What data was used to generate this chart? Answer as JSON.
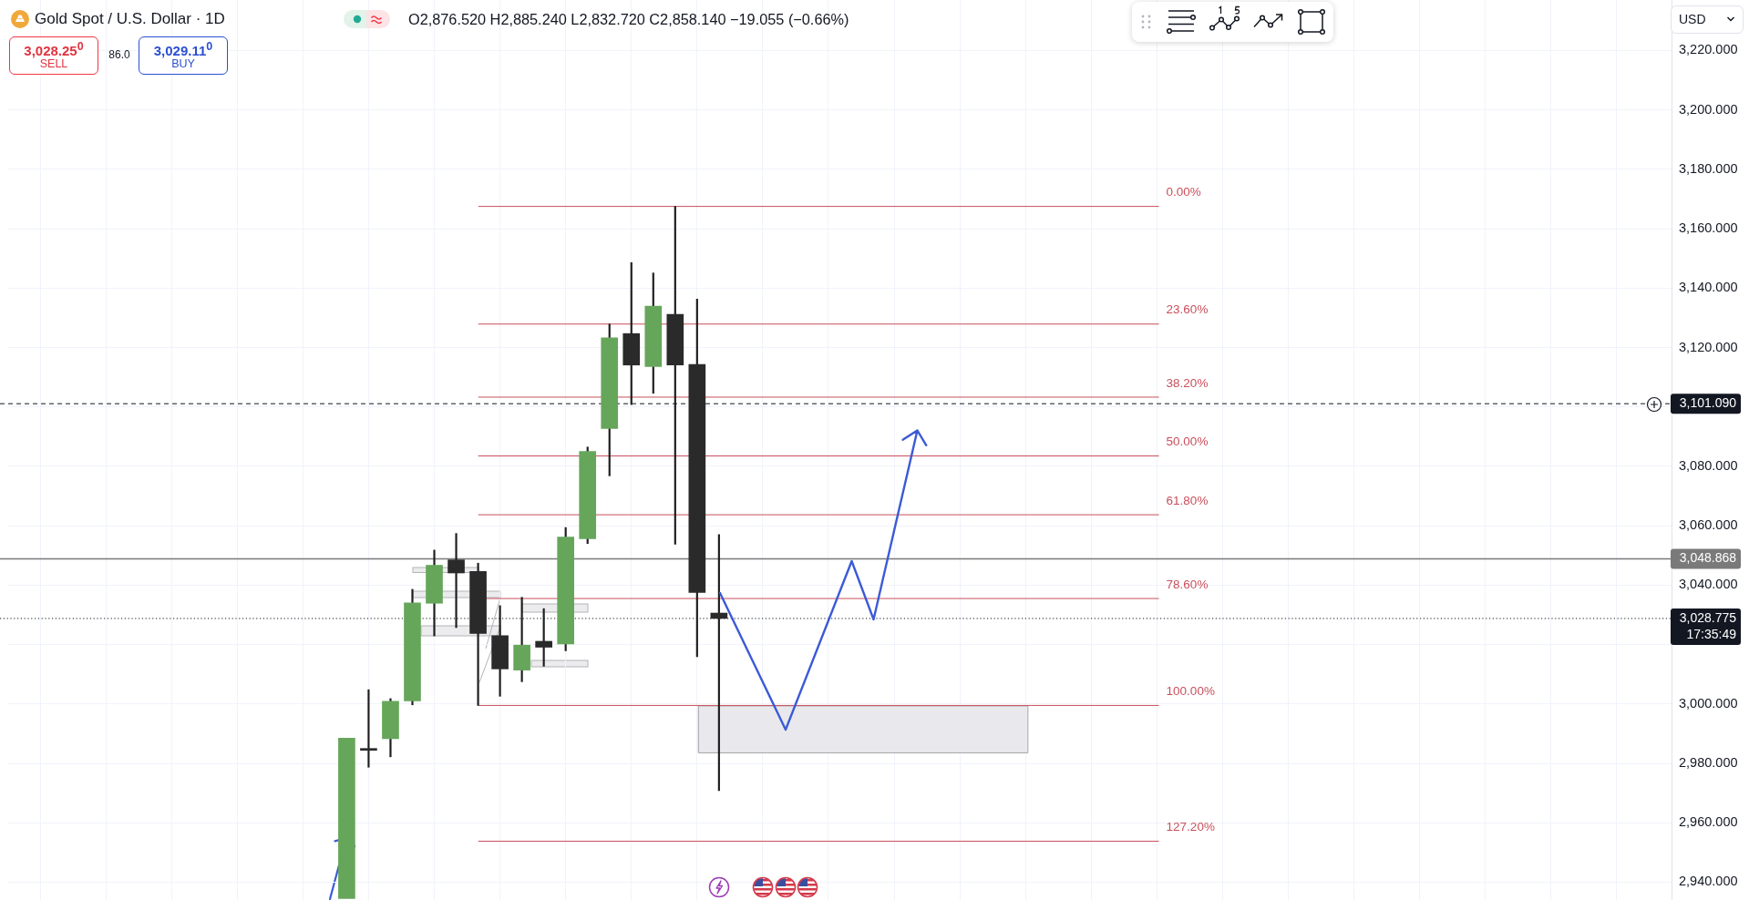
{
  "chart_data": {
    "type": "candlestick",
    "title": "Gold Spot / U.S. Dollar · 1D",
    "subtitle": "O2,876.520 H2,885.240 L2,832.720 C2,858.140 −19.055 (−0.66%)",
    "annotations": [
      "3,028.25$^{0}$",
      "SELL",
      "86.0",
      "3,029.11$^{0}$",
      "BUY",
      "USD",
      "0.00%",
      "23.60%",
      "38.20%",
      "50.00%",
      "61.80%",
      "78.60%",
      "100.00%",
      "127.20%"
    ],
    "categories": [
      null,
      null,
      null,
      null,
      null,
      null,
      null,
      null,
      null,
      null,
      null,
      null,
      null,
      null,
      null,
      null,
      null,
      null,
      null,
      null,
      null,
      null,
      null,
      null,
      null,
      null,
      null,
      null,
      null,
      null,
      null,
      null,
      null,
      null,
      null,
      null,
      null,
      null,
      null,
      null,
      null,
      null,
      null,
      null,
      null,
      null,
      null,
      null,
      null,
      null,
      null,
      null,
      null,
      null,
      null,
      null,
      null,
      null,
      null,
      null,
      null,
      null,
      null,
      null,
      null,
      null,
      null,
      null,
      null,
      null,
      null,
      null,
      null,
      null,
      null,
      null
    ],
    "ohlc": [
      null,
      null,
      null,
      null,
      null,
      null,
      null,
      null,
      null,
      null,
      null,
      null,
      null,
      null,
      null,
      [
        2934.5,
        2988.5,
        2934.5,
        2988.5
      ],
      [
        2984.8,
        3004.8,
        2978.7,
        2984.4
      ],
      [
        2988.3,
        3001.8,
        2982.2,
        3000.9
      ],
      [
        3001.0,
        3038.6,
        2999.7,
        3034.0
      ],
      [
        3033.9,
        3051.8,
        3022.9,
        3046.7
      ],
      [
        3048.5,
        3057.4,
        3025.7,
        3044.1
      ],
      [
        3044.6,
        3047.4,
        2999.5,
        3023.7
      ],
      [
        3023.0,
        3033.1,
        3002.6,
        3011.8
      ],
      [
        3011.4,
        3035.9,
        3007.5,
        3019.8
      ],
      [
        3021.1,
        3032.1,
        3012.7,
        3019.1
      ],
      [
        3020.2,
        3059.4,
        3017.9,
        3056.2
      ],
      [
        3055.6,
        3086.5,
        3054.0,
        3085.0
      ],
      [
        3092.7,
        3127.9,
        3076.8,
        3123.3
      ],
      [
        3124.7,
        3148.6,
        3100.8,
        3114.1
      ],
      [
        3113.6,
        3145.1,
        3104.6,
        3133.9
      ],
      [
        3131.2,
        3167.5,
        3053.8,
        3114.1
      ],
      [
        3114.3,
        3136.3,
        3015.9,
        3037.5
      ],
      [
        3030.6,
        3057.0,
        2970.8,
        3028.8
      ],
      null,
      null,
      null,
      null,
      null,
      null,
      null,
      null,
      null,
      null,
      null,
      null,
      null,
      null,
      null,
      null,
      null,
      null,
      null,
      null,
      null,
      null,
      null,
      null,
      null,
      null,
      null,
      null,
      null,
      null,
      null,
      null,
      null,
      null,
      null,
      null,
      null,
      null,
      null,
      null,
      null,
      null,
      null
    ],
    "colors": [
      null,
      null,
      null,
      null,
      null,
      null,
      null,
      null,
      null,
      null,
      null,
      null,
      null,
      null,
      null,
      "#66a65b",
      "#2a2a2a",
      "#66a65b",
      "#66a65b",
      "#66a65b",
      "#2a2a2a",
      "#2a2a2a",
      "#2a2a2a",
      "#66a65b",
      "#2a2a2a",
      "#66a65b",
      "#66a65b",
      "#66a65b",
      "#2a2a2a",
      "#66a65b",
      "#2a2a2a",
      "#2a2a2a",
      "#2a2a2a",
      null,
      null,
      null,
      null,
      null,
      null,
      null,
      null,
      null,
      null,
      null,
      null,
      null,
      null,
      null,
      null,
      null,
      null,
      null,
      null,
      null,
      null,
      null,
      null,
      null,
      null,
      null,
      null,
      null,
      null,
      null,
      null,
      null,
      null,
      null,
      null,
      null,
      null,
      null,
      null,
      null,
      null,
      null
    ],
    "ylim": [
      2934,
      3237
    ],
    "yticks": [
      {
        "value": 2940,
        "label": "2,940.000"
      },
      {
        "value": 2960,
        "label": "2,960.000"
      },
      {
        "value": 2980,
        "label": "2,980.000"
      },
      {
        "value": 3000,
        "label": "3,000.000"
      },
      {
        "value": 3020,
        "label": null
      },
      {
        "value": 3040,
        "label": "3,040.000"
      },
      {
        "value": 3060,
        "label": "3,060.000"
      },
      {
        "value": 3080,
        "label": "3,080.000"
      },
      {
        "value": 3100,
        "label": null
      },
      {
        "value": 3120,
        "label": "3,120.000"
      },
      {
        "value": 3140,
        "label": "3,140.000"
      },
      {
        "value": 3160,
        "label": "3,160.000"
      },
      {
        "value": 3180,
        "label": "3,180.000"
      },
      {
        "value": 3200,
        "label": "3,200.000"
      },
      {
        "value": 3220,
        "label": "3,220.000"
      }
    ],
    "tick_labels": "y",
    "grid": true,
    "ref_lines": [
      {
        "axis": "y",
        "value": 3167.5,
        "color": "#c94f5b"
      },
      {
        "axis": "y",
        "value": 3127.9,
        "color": "#c94f5b"
      },
      {
        "axis": "y",
        "value": 3103.3,
        "color": "#c94f5b"
      },
      {
        "axis": "y",
        "value": 3083.5,
        "color": "#c94f5b"
      },
      {
        "axis": "y",
        "value": 3063.7,
        "color": "#c94f5b"
      },
      {
        "axis": "y",
        "value": 3035.5,
        "color": "#c94f5b"
      },
      {
        "axis": "y",
        "value": 2999.5,
        "color": "#c94f5b"
      },
      {
        "axis": "y",
        "value": 2953.8,
        "color": "#c94f5b"
      },
      {
        "axis": "y",
        "value": 3101.09,
        "label": "3,101.090",
        "color": "#131722",
        "line_style": "dashed"
      },
      {
        "axis": "y",
        "value": 3048.868,
        "label": "3,048.868",
        "color": "#7a7a7a",
        "line_style": "solid"
      },
      {
        "axis": "y",
        "value": 3028.775,
        "label": "3,028.775\n17:35:49",
        "color": "#131722",
        "line_style": "dotted"
      }
    ],
    "bands": [
      {
        "axis": "y",
        "from": 2983.7,
        "to": 2999.5,
        "color": "#e9e9ed"
      }
    ]
  }
}
